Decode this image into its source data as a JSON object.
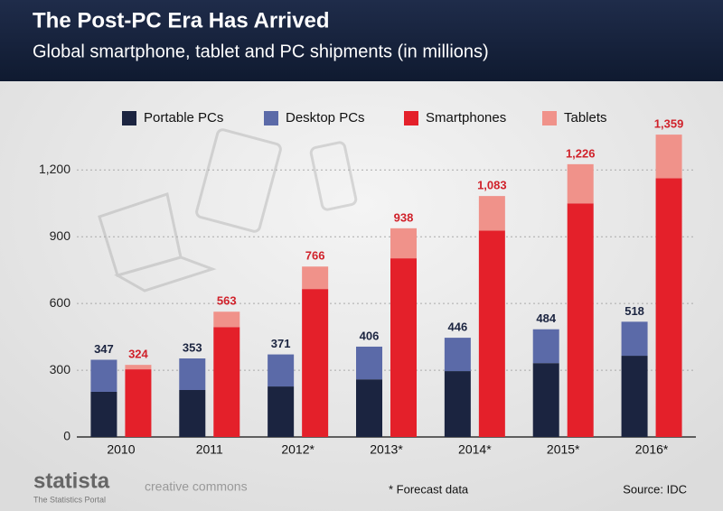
{
  "header": {
    "title": "The Post-PC Era Has Arrived",
    "subtitle": "Global smartphone, tablet and PC shipments (in millions)"
  },
  "chart_data": {
    "type": "bar",
    "categories": [
      "2010",
      "2011",
      "2012*",
      "2013*",
      "2014*",
      "2015*",
      "2016*"
    ],
    "stacks": [
      {
        "series": [
          {
            "name": "Portable PCs",
            "color": "#1b2440",
            "values": [
              203,
              211,
              227,
              259,
              296,
              332,
              365
            ]
          },
          {
            "name": "Desktop PCs",
            "color": "#5b6aa8",
            "values": [
              144,
              142,
              144,
              147,
              150,
              152,
              153
            ]
          }
        ],
        "totals": [
          347,
          353,
          371,
          406,
          446,
          484,
          518
        ],
        "total_color": "#1b2440"
      },
      {
        "series": [
          {
            "name": "Smartphones",
            "color": "#e4202a",
            "values": [
              304,
              494,
              665,
              803,
              928,
              1050,
              1163
            ]
          },
          {
            "name": "Tablets",
            "color": "#f0928a",
            "values": [
              20,
              69,
              101,
              135,
              155,
              176,
              196
            ]
          }
        ],
        "totals": [
          324,
          563,
          766,
          938,
          1083,
          1226,
          1359
        ],
        "value_labels": [
          "324",
          "563",
          "766",
          "938",
          "1,083",
          "1,226",
          "1,359"
        ],
        "total_color": "#d0212a"
      }
    ],
    "ylim": [
      0,
      1400
    ],
    "yticks": [
      0,
      300,
      600,
      900,
      {
        "value": 1200,
        "label": "1,200"
      }
    ],
    "grid": true
  },
  "footer": {
    "brand": "statista",
    "brand_tagline": "The Statistics Portal",
    "license": "creative commons",
    "note": "* Forecast data",
    "source": "Source: IDC"
  }
}
